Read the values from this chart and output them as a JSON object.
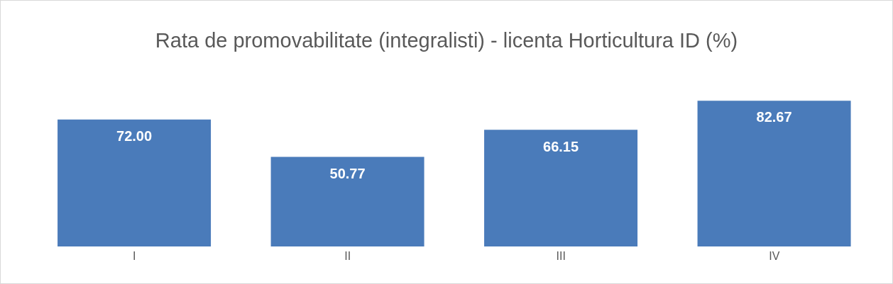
{
  "chart_data": {
    "type": "bar",
    "title": "Rata de promovabilitate (integralisti) - licenta Horticultura ID (%)",
    "categories": [
      "I",
      "II",
      "III",
      "IV"
    ],
    "values": [
      72.0,
      50.77,
      66.15,
      82.67
    ],
    "value_labels": [
      "72.00",
      "50.77",
      "66.15",
      "82.67"
    ],
    "color": "#4a7bba",
    "grid": false,
    "legend": false
  }
}
